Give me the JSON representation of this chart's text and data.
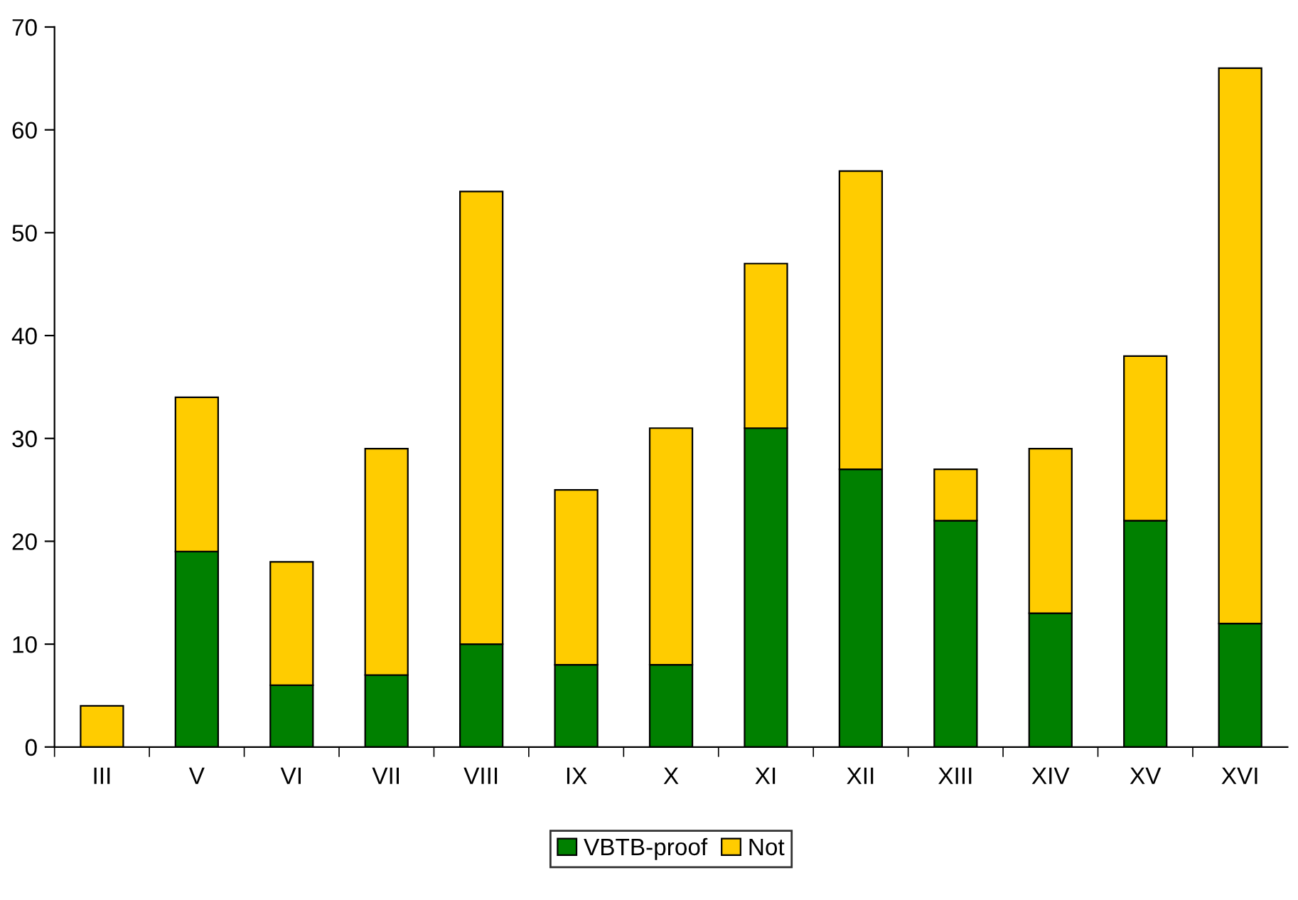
{
  "chart_data": {
    "type": "bar",
    "stacked": true,
    "categories": [
      "III",
      "V",
      "VI",
      "VII",
      "VIII",
      "IX",
      "X",
      "XI",
      "XII",
      "XIII",
      "XIV",
      "XV",
      "XVI"
    ],
    "series": [
      {
        "name": "VBTB-proof",
        "color": "#008000",
        "values": [
          0,
          19,
          6,
          7,
          10,
          8,
          8,
          31,
          27,
          22,
          13,
          22,
          12
        ]
      },
      {
        "name": "Not",
        "color": "#ffcc00",
        "values": [
          4,
          15,
          12,
          22,
          44,
          17,
          23,
          16,
          29,
          5,
          16,
          16,
          54
        ]
      }
    ],
    "ylim": [
      0,
      70
    ],
    "yticks": [
      0,
      10,
      20,
      30,
      40,
      50,
      60,
      70
    ],
    "grid": false,
    "legend": "bottom"
  }
}
